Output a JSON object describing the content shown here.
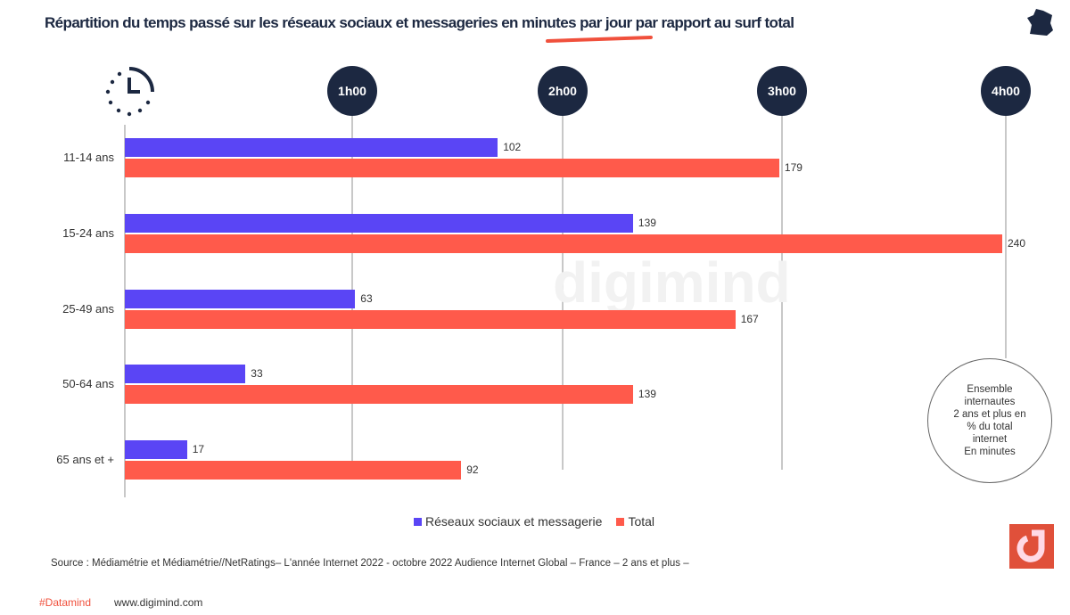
{
  "title": "Répartition du temps passé sur les réseaux sociaux et messageries en minutes par jour par rapport au surf total",
  "hour_markers": [
    "1h00",
    "2h00",
    "3h00",
    "4h00"
  ],
  "watermark": "digimind",
  "chart_data": {
    "type": "bar",
    "orientation": "horizontal",
    "categories": [
      "11-14 ans",
      "15-24 ans",
      "25-49 ans",
      "50-64 ans",
      "65 ans et +"
    ],
    "series": [
      {
        "name": "Réseaux sociaux et messagerie",
        "color": "#5a45f5",
        "values": [
          102,
          139,
          63,
          33,
          17
        ]
      },
      {
        "name": "Total",
        "color": "#ff5a4b",
        "values": [
          179,
          240,
          167,
          139,
          92
        ]
      }
    ],
    "xlabel": "minutes",
    "xlim": [
      0,
      240
    ]
  },
  "legend": [
    {
      "label": "Réseaux sociaux et messagerie"
    },
    {
      "label": "Total"
    }
  ],
  "note": [
    "Ensemble",
    "internautes",
    "2 ans et plus en",
    "% du total",
    "internet",
    "En minutes"
  ],
  "source": "Source : Médiamétrie et Médiamétrie//NetRatings– L'année Internet 2022 - octobre 2022 Audience Internet Global – France – 2 ans et plus –",
  "footer": {
    "hashtag": "#Datamind",
    "url": "www.digimind.com"
  }
}
